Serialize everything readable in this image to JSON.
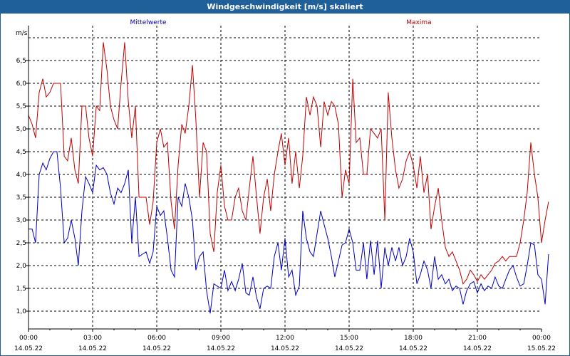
{
  "window": {
    "title": "Windgeschwindigkeit [m/s] skaliert"
  },
  "chart_data": {
    "type": "line",
    "title": "Windgeschwindigkeit [m/s] skaliert",
    "ylabel": "m/s",
    "xlabel": "",
    "ylim": [
      0.6,
      7.1
    ],
    "xlim": [
      0,
      24
    ],
    "grid": true,
    "legend": "top",
    "y_ticks": [
      "1,0",
      "1,5",
      "2,0",
      "2,5",
      "3,0",
      "3,5",
      "4,0",
      "4,5",
      "5,0",
      "5,5",
      "6,0",
      "6,5"
    ],
    "x_ticks": [
      {
        "time": "00:00",
        "date": "14.05.22"
      },
      {
        "time": "03:00",
        "date": "14.05.22"
      },
      {
        "time": "06:00",
        "date": "14.05.22"
      },
      {
        "time": "09:00",
        "date": "14.05.22"
      },
      {
        "time": "12:00",
        "date": "14.05.22"
      },
      {
        "time": "15:00",
        "date": "14.05.22"
      },
      {
        "time": "18:00",
        "date": "14.05.22"
      },
      {
        "time": "21:00",
        "date": "14.05.22"
      },
      {
        "time": "00:00",
        "date": "15.05.22"
      }
    ],
    "series": [
      {
        "name": "Mittelwerte",
        "color": "#0000c0",
        "points": [
          [
            0,
            2.8
          ],
          [
            0.17,
            2.8
          ],
          [
            0.33,
            2.5
          ],
          [
            0.5,
            4.0
          ],
          [
            0.67,
            4.25
          ],
          [
            0.83,
            4.1
          ],
          [
            1.0,
            4.35
          ],
          [
            1.17,
            4.5
          ],
          [
            1.33,
            4.5
          ],
          [
            1.5,
            3.7
          ],
          [
            1.67,
            2.5
          ],
          [
            1.83,
            2.6
          ],
          [
            2.0,
            3.0
          ],
          [
            2.17,
            2.6
          ],
          [
            2.33,
            2.0
          ],
          [
            2.5,
            3.2
          ],
          [
            2.67,
            3.95
          ],
          [
            2.83,
            3.8
          ],
          [
            3.0,
            3.6
          ],
          [
            3.17,
            4.2
          ],
          [
            3.33,
            4.1
          ],
          [
            3.5,
            4.15
          ],
          [
            3.67,
            4.0
          ],
          [
            3.83,
            3.6
          ],
          [
            4.0,
            3.35
          ],
          [
            4.17,
            3.7
          ],
          [
            4.33,
            3.6
          ],
          [
            4.5,
            3.8
          ],
          [
            4.67,
            4.1
          ],
          [
            4.83,
            2.5
          ],
          [
            5.0,
            3.5
          ],
          [
            5.17,
            2.2
          ],
          [
            5.33,
            2.25
          ],
          [
            5.5,
            2.3
          ],
          [
            5.67,
            2.05
          ],
          [
            5.83,
            2.3
          ],
          [
            6.0,
            3.3
          ],
          [
            6.17,
            3.1
          ],
          [
            6.33,
            3.2
          ],
          [
            6.5,
            2.6
          ],
          [
            6.67,
            1.9
          ],
          [
            6.83,
            1.75
          ],
          [
            7.0,
            3.5
          ],
          [
            7.17,
            3.3
          ],
          [
            7.33,
            3.8
          ],
          [
            7.5,
            3.5
          ],
          [
            7.67,
            3.0
          ],
          [
            7.83,
            1.9
          ],
          [
            8.0,
            2.2
          ],
          [
            8.17,
            2.3
          ],
          [
            8.33,
            1.45
          ],
          [
            8.5,
            0.95
          ],
          [
            8.67,
            1.6
          ],
          [
            8.83,
            1.55
          ],
          [
            9.0,
            1.5
          ],
          [
            9.17,
            1.9
          ],
          [
            9.33,
            1.45
          ],
          [
            9.5,
            1.65
          ],
          [
            9.67,
            1.45
          ],
          [
            9.83,
            1.7
          ],
          [
            10.0,
            2.05
          ],
          [
            10.17,
            1.4
          ],
          [
            10.33,
            1.35
          ],
          [
            10.5,
            1.75
          ],
          [
            10.67,
            1.3
          ],
          [
            10.83,
            1.05
          ],
          [
            11.0,
            1.5
          ],
          [
            11.17,
            1.55
          ],
          [
            11.33,
            1.5
          ],
          [
            11.5,
            2.2
          ],
          [
            11.67,
            2.5
          ],
          [
            11.83,
            1.9
          ],
          [
            12.0,
            2.6
          ],
          [
            12.17,
            1.75
          ],
          [
            12.33,
            1.9
          ],
          [
            12.5,
            1.35
          ],
          [
            12.67,
            1.55
          ],
          [
            12.83,
            3.2
          ],
          [
            13.0,
            2.6
          ],
          [
            13.17,
            2.3
          ],
          [
            13.33,
            2.2
          ],
          [
            13.5,
            2.7
          ],
          [
            13.67,
            3.2
          ],
          [
            13.83,
            2.9
          ],
          [
            14.0,
            2.6
          ],
          [
            14.17,
            2.2
          ],
          [
            14.33,
            1.75
          ],
          [
            14.5,
            2.1
          ],
          [
            14.67,
            2.45
          ],
          [
            14.83,
            2.5
          ],
          [
            15.0,
            2.8
          ],
          [
            15.17,
            2.5
          ],
          [
            15.33,
            1.9
          ],
          [
            15.5,
            1.9
          ],
          [
            15.67,
            2.5
          ],
          [
            15.83,
            1.7
          ],
          [
            16.0,
            2.55
          ],
          [
            16.17,
            1.8
          ],
          [
            16.33,
            2.55
          ],
          [
            16.5,
            1.5
          ],
          [
            16.67,
            2.4
          ],
          [
            16.83,
            2.0
          ],
          [
            17.0,
            2.4
          ],
          [
            17.17,
            2.1
          ],
          [
            17.33,
            2.4
          ],
          [
            17.5,
            2.0
          ],
          [
            17.67,
            2.2
          ],
          [
            17.83,
            2.6
          ],
          [
            18.0,
            2.3
          ],
          [
            18.17,
            1.6
          ],
          [
            18.33,
            1.8
          ],
          [
            18.5,
            2.1
          ],
          [
            18.67,
            1.9
          ],
          [
            18.83,
            1.5
          ],
          [
            19.0,
            2.2
          ],
          [
            19.17,
            1.7
          ],
          [
            19.33,
            1.8
          ],
          [
            19.5,
            1.6
          ],
          [
            19.67,
            1.7
          ],
          [
            19.83,
            1.45
          ],
          [
            20.0,
            1.55
          ],
          [
            20.17,
            1.5
          ],
          [
            20.33,
            1.15
          ],
          [
            20.5,
            1.45
          ],
          [
            20.67,
            1.6
          ],
          [
            20.83,
            1.65
          ],
          [
            21.0,
            1.4
          ],
          [
            21.17,
            1.6
          ],
          [
            21.33,
            1.45
          ],
          [
            21.5,
            1.55
          ],
          [
            21.67,
            1.5
          ],
          [
            21.83,
            1.75
          ],
          [
            22.0,
            1.55
          ],
          [
            22.17,
            1.5
          ],
          [
            22.33,
            1.7
          ],
          [
            22.5,
            1.9
          ],
          [
            22.67,
            2.0
          ],
          [
            22.83,
            1.75
          ],
          [
            23.0,
            1.55
          ],
          [
            23.17,
            1.6
          ],
          [
            23.33,
            2.0
          ],
          [
            23.5,
            2.5
          ],
          [
            23.67,
            2.45
          ],
          [
            23.83,
            1.8
          ],
          [
            24.0,
            1.7
          ],
          [
            24.17,
            1.15
          ],
          [
            24.33,
            2.25
          ]
        ]
      },
      {
        "name": "Maxima",
        "color": "#c00000",
        "points": [
          [
            0,
            5.3
          ],
          [
            0.17,
            5.1
          ],
          [
            0.33,
            4.8
          ],
          [
            0.5,
            5.8
          ],
          [
            0.67,
            6.1
          ],
          [
            0.83,
            5.7
          ],
          [
            1.0,
            5.8
          ],
          [
            1.17,
            6.0
          ],
          [
            1.33,
            6.0
          ],
          [
            1.5,
            6.0
          ],
          [
            1.67,
            4.4
          ],
          [
            1.83,
            4.3
          ],
          [
            2.0,
            4.8
          ],
          [
            2.17,
            4.1
          ],
          [
            2.33,
            3.8
          ],
          [
            2.5,
            5.5
          ],
          [
            2.67,
            5.5
          ],
          [
            2.83,
            4.8
          ],
          [
            3.0,
            4.4
          ],
          [
            3.17,
            5.5
          ],
          [
            3.33,
            5.4
          ],
          [
            3.5,
            6.9
          ],
          [
            3.67,
            6.3
          ],
          [
            3.83,
            5.5
          ],
          [
            4.0,
            5.2
          ],
          [
            4.17,
            5.0
          ],
          [
            4.33,
            6.0
          ],
          [
            4.5,
            6.9
          ],
          [
            4.67,
            5.6
          ],
          [
            4.83,
            4.8
          ],
          [
            5.0,
            5.5
          ],
          [
            5.17,
            3.5
          ],
          [
            5.33,
            3.5
          ],
          [
            5.5,
            3.5
          ],
          [
            5.67,
            2.9
          ],
          [
            5.83,
            3.4
          ],
          [
            6.0,
            4.7
          ],
          [
            6.17,
            5.0
          ],
          [
            6.33,
            4.6
          ],
          [
            6.5,
            4.7
          ],
          [
            6.67,
            3.4
          ],
          [
            6.83,
            2.8
          ],
          [
            7.0,
            4.2
          ],
          [
            7.17,
            5.1
          ],
          [
            7.33,
            4.9
          ],
          [
            7.5,
            5.5
          ],
          [
            7.67,
            6.4
          ],
          [
            7.83,
            5.2
          ],
          [
            8.0,
            3.5
          ],
          [
            8.17,
            4.7
          ],
          [
            8.33,
            4.5
          ],
          [
            8.5,
            2.7
          ],
          [
            8.67,
            2.3
          ],
          [
            8.83,
            3.6
          ],
          [
            9.0,
            4.2
          ],
          [
            9.17,
            3.3
          ],
          [
            9.33,
            3.0
          ],
          [
            9.5,
            3.0
          ],
          [
            9.67,
            3.5
          ],
          [
            9.83,
            3.7
          ],
          [
            10.0,
            3.2
          ],
          [
            10.17,
            3.0
          ],
          [
            10.33,
            3.7
          ],
          [
            10.5,
            4.4
          ],
          [
            10.67,
            3.5
          ],
          [
            10.83,
            2.7
          ],
          [
            11.0,
            3.5
          ],
          [
            11.17,
            3.9
          ],
          [
            11.33,
            3.2
          ],
          [
            11.5,
            4.0
          ],
          [
            11.67,
            4.5
          ],
          [
            11.83,
            4.9
          ],
          [
            12.0,
            4.2
          ],
          [
            12.17,
            4.8
          ],
          [
            12.33,
            3.8
          ],
          [
            12.5,
            4.5
          ],
          [
            12.67,
            3.7
          ],
          [
            12.83,
            4.4
          ],
          [
            13.0,
            5.7
          ],
          [
            13.17,
            5.3
          ],
          [
            13.33,
            5.7
          ],
          [
            13.5,
            5.5
          ],
          [
            13.67,
            4.6
          ],
          [
            13.83,
            5.6
          ],
          [
            14.0,
            5.3
          ],
          [
            14.17,
            5.6
          ],
          [
            14.33,
            5.5
          ],
          [
            14.5,
            5.1
          ],
          [
            14.67,
            3.5
          ],
          [
            14.83,
            4.1
          ],
          [
            15.0,
            3.8
          ],
          [
            15.17,
            6.1
          ],
          [
            15.33,
            4.7
          ],
          [
            15.5,
            4.8
          ],
          [
            15.67,
            4.0
          ],
          [
            15.83,
            4.0
          ],
          [
            16.0,
            5.0
          ],
          [
            16.17,
            4.9
          ],
          [
            16.33,
            4.8
          ],
          [
            16.5,
            5.0
          ],
          [
            16.67,
            3.0
          ],
          [
            16.83,
            5.8
          ],
          [
            17.0,
            4.8
          ],
          [
            17.17,
            4.1
          ],
          [
            17.33,
            3.7
          ],
          [
            17.5,
            3.9
          ],
          [
            17.67,
            4.3
          ],
          [
            17.83,
            4.5
          ],
          [
            18.0,
            4.2
          ],
          [
            18.17,
            3.7
          ],
          [
            18.33,
            4.4
          ],
          [
            18.5,
            3.6
          ],
          [
            18.67,
            4.0
          ],
          [
            18.83,
            2.8
          ],
          [
            19.0,
            3.3
          ],
          [
            19.17,
            3.7
          ],
          [
            19.33,
            3.0
          ],
          [
            19.5,
            2.4
          ],
          [
            19.67,
            2.2
          ],
          [
            19.83,
            2.3
          ],
          [
            20.0,
            2.1
          ],
          [
            20.17,
            1.9
          ],
          [
            20.33,
            1.6
          ],
          [
            20.5,
            1.7
          ],
          [
            20.67,
            1.9
          ],
          [
            20.83,
            1.8
          ],
          [
            21.0,
            1.65
          ],
          [
            21.17,
            1.8
          ],
          [
            21.33,
            1.7
          ],
          [
            21.5,
            1.8
          ],
          [
            21.67,
            1.9
          ],
          [
            21.83,
            2.05
          ],
          [
            22.0,
            2.1
          ],
          [
            22.17,
            2.2
          ],
          [
            22.33,
            2.1
          ],
          [
            22.5,
            2.2
          ],
          [
            22.67,
            2.2
          ],
          [
            22.83,
            2.2
          ],
          [
            23.0,
            2.5
          ],
          [
            23.17,
            3.0
          ],
          [
            23.33,
            3.6
          ],
          [
            23.5,
            4.7
          ],
          [
            23.67,
            4.0
          ],
          [
            23.83,
            3.5
          ],
          [
            24.0,
            2.5
          ],
          [
            24.17,
            3.0
          ],
          [
            24.33,
            3.4
          ]
        ]
      }
    ]
  }
}
